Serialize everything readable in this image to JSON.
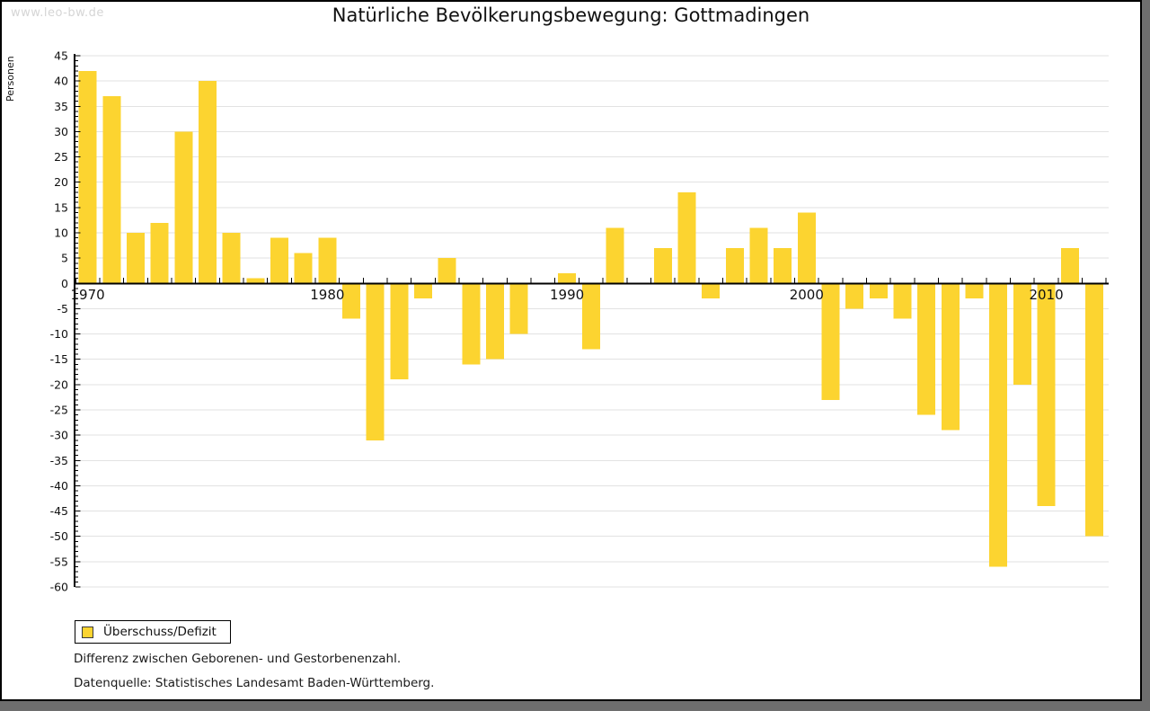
{
  "page": {
    "watermark": "www.leo-bw.de",
    "title": "Natürliche Bevölkerungsbewegung: Gottmadingen"
  },
  "legend": {
    "label": "Überschuss/Defizit"
  },
  "notes": {
    "line1": "Differenz zwischen Geborenen- und Gestorbenenzahl.",
    "line2": "Datenquelle: Statistisches Landesamt Baden-Württemberg."
  },
  "colors": {
    "bar": "#fcd430",
    "grid": "#e2e2e2",
    "axis": "#000000",
    "watermark": "#d5d5d5",
    "frame_shadow": "#6e6e6e",
    "swatch_border": "#3b3b3b"
  },
  "chart_data": {
    "type": "bar",
    "title": "Natürliche Bevölkerungsbewegung: Gottmadingen",
    "xlabel": "",
    "ylabel": "Personen",
    "ylim": [
      -60,
      45
    ],
    "ytick_step": 5,
    "grid": true,
    "legend_entries": [
      "Überschuss/Defizit"
    ],
    "legend_position": "bottom-left",
    "bar_color": "#fcd430",
    "categories": [
      1970,
      1971,
      1972,
      1973,
      1974,
      1975,
      1976,
      1977,
      1978,
      1979,
      1980,
      1981,
      1982,
      1983,
      1984,
      1985,
      1986,
      1987,
      1988,
      1989,
      1990,
      1991,
      1992,
      1993,
      1994,
      1995,
      1996,
      1997,
      1998,
      1999,
      2000,
      2001,
      2002,
      2003,
      2004,
      2005,
      2006,
      2007,
      2008,
      2009,
      2010,
      2011,
      2012
    ],
    "values": [
      42,
      37,
      10,
      12,
      30,
      40,
      10,
      1,
      9,
      6,
      9,
      -7,
      -31,
      -19,
      -3,
      5,
      -16,
      -15,
      -10,
      0,
      2,
      -13,
      11,
      0,
      7,
      18,
      -3,
      7,
      11,
      7,
      14,
      -23,
      -5,
      -3,
      -7,
      -26,
      -29,
      -3,
      -56,
      -20,
      -44,
      7,
      -50
    ],
    "xtick_labels": [
      "1970",
      "1980",
      "1990",
      "2000",
      "2010"
    ]
  }
}
